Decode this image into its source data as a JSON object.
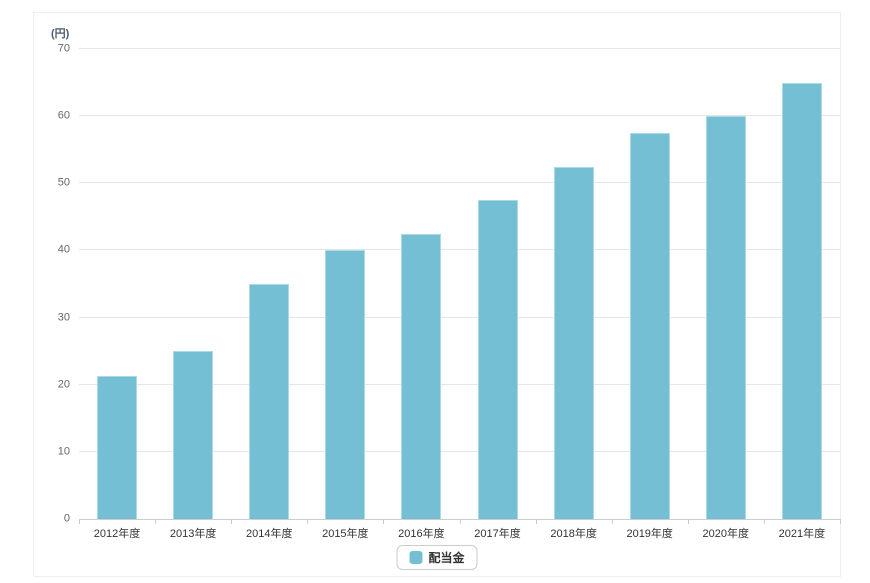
{
  "chart_data": {
    "type": "bar",
    "title": "",
    "unit_label": "(円)",
    "xlabel": "",
    "ylabel": "",
    "categories": [
      "2012年度",
      "2013年度",
      "2014年度",
      "2015年度",
      "2016年度",
      "2017年度",
      "2018年度",
      "2019年度",
      "2020年度",
      "2021年度"
    ],
    "series": [
      {
        "name": "配当金",
        "values": [
          21.25,
          25,
          35,
          40,
          42.5,
          47.5,
          52.5,
          57.5,
          60,
          65
        ]
      }
    ],
    "ylim": [
      0,
      70
    ],
    "yticks": [
      0,
      10,
      20,
      30,
      40,
      50,
      60,
      70
    ],
    "grid": true,
    "legend_position": "bottom"
  },
  "colors": {
    "bar_fill": "#74bfd4",
    "bar_border": "#aadae6",
    "gridline": "#e6e6e6",
    "axis_line": "#c8ced4",
    "y_label": "#666666",
    "x_label": "#333333",
    "unit_label": "#4a5a6d",
    "legend_border": "#cccccc",
    "legend_text": "#333333"
  }
}
